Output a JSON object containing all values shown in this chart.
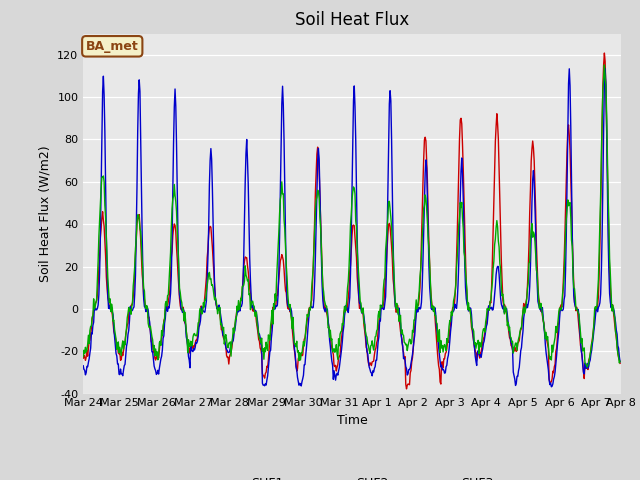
{
  "title": "Soil Heat Flux",
  "ylabel": "Soil Heat Flux (W/m2)",
  "xlabel": "Time",
  "ylim": [
    -40,
    130
  ],
  "xlim": [
    0,
    352
  ],
  "xtick_labels": [
    "Mar 24",
    "Mar 25",
    "Mar 26",
    "Mar 27",
    "Mar 28",
    "Mar 29",
    "Mar 30",
    "Mar 31",
    "Apr 1",
    "Apr 2",
    "Apr 3",
    "Apr 4",
    "Apr 5",
    "Apr 6",
    "Apr 7",
    "Apr 8"
  ],
  "xtick_positions": [
    0,
    24,
    48,
    72,
    96,
    120,
    144,
    168,
    192,
    216,
    240,
    264,
    288,
    312,
    336,
    352
  ],
  "ytick_labels": [
    "-40",
    "-20",
    "0",
    "20",
    "40",
    "60",
    "80",
    "100",
    "120"
  ],
  "ytick_values": [
    -40,
    -20,
    0,
    20,
    40,
    60,
    80,
    100,
    120
  ],
  "shf1_color": "#cc0000",
  "shf2_color": "#0000cc",
  "shf3_color": "#00aa00",
  "linewidth": 1.0,
  "bg_color": "#d8d8d8",
  "plot_bg_color": "#e8e8e8",
  "legend_label": "BA_met",
  "legend_bg": "#f5f0c8",
  "legend_border": "#8b4513",
  "title_fontsize": 12,
  "label_fontsize": 9,
  "tick_fontsize": 8
}
